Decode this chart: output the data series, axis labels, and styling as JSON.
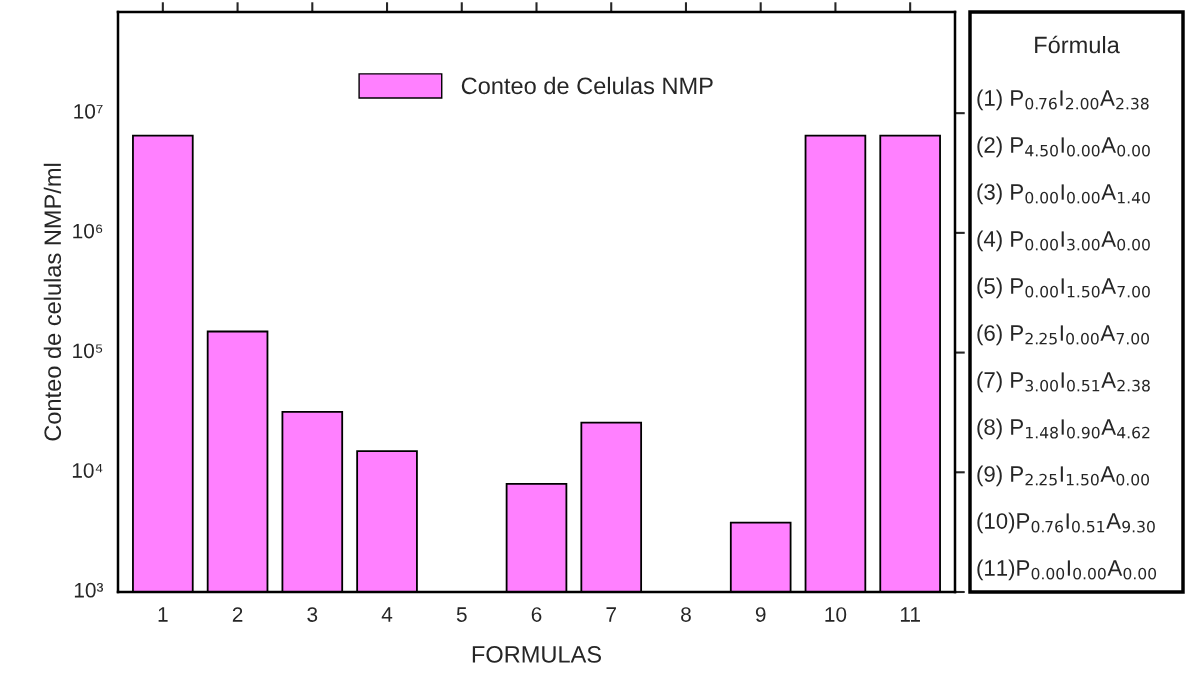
{
  "chart_data": {
    "type": "bar",
    "xlabel": "FORMULAS",
    "ylabel": "Conteo de celulas NMP/ml",
    "categories": [
      "1",
      "2",
      "3",
      "4",
      "5",
      "6",
      "7",
      "8",
      "9",
      "10",
      "11"
    ],
    "series": [
      {
        "name": "Conteo de Celulas NMP",
        "color": "#ff80ff",
        "values": [
          6500000,
          150000,
          32000,
          15000,
          null,
          8000,
          26000,
          null,
          3800,
          6500000,
          6500000
        ]
      }
    ],
    "log": true,
    "ylim": [
      1000,
      70000000
    ],
    "yticks": [
      {
        "value": 1000,
        "label": "10³"
      },
      {
        "value": 10000,
        "label": "10⁴"
      },
      {
        "value": 100000,
        "label": "10⁵"
      },
      {
        "value": 1000000,
        "label": "10⁶"
      },
      {
        "value": 10000000,
        "label": "10⁷"
      }
    ],
    "legend": "top",
    "grid": false,
    "annotations": [
      "Fórmula",
      "(1) P$_{0.76}$I$_{2.00}$A$_{2.38}$",
      "(2) P$_{4.50}$I$_{0.00}$A$_{0.00}$",
      "(3) P$_{0.00}$I$_{0.00}$A$_{1.40}$",
      "(4) P$_{0.00}$I$_{3.00}$A$_{0.00}$",
      "(5) P$_{0.00}$I$_{1.50}$A$_{7.00}$",
      "(6) P$_{2.25}$I$_{0.00}$A$_{7.00}$",
      "(7) P$_{3.00}$I$_{0.51}$A$_{2.38}$",
      "(8) P$_{1.48}$I$_{0.90}$A$_{4.62}$",
      "(9) P$_{2.25}$I$_{1.50}$A$_{0.00}$",
      "(10)P$_{0.76}$I$_{0.51}$A$_{9.30}$",
      "(11)P$_{0.00}$I$_{0.00}$A$_{0.00}$"
    ]
  }
}
